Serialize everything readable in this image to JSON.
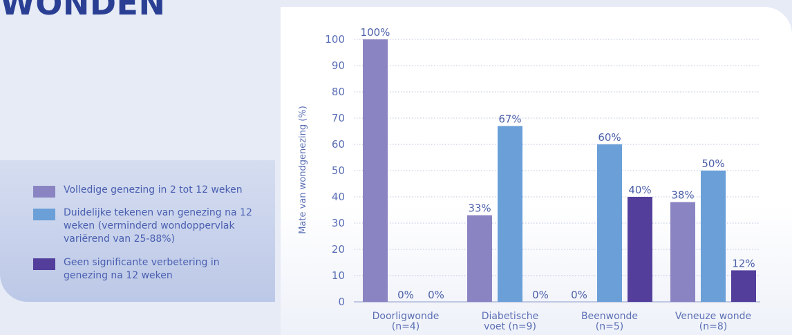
{
  "heading": "WONDEN",
  "colors": {
    "series_1": "#8b84c2",
    "series_2": "#6a9fd8",
    "series_3": "#533f9b",
    "text": "#5b6fb5",
    "heading": "#2a3f94"
  },
  "legend": {
    "items": [
      {
        "label": "Volledige genezing in 2 tot 12 weken",
        "color": "#8b84c2"
      },
      {
        "label": "Duidelijke tekenen van genezing na 12 weken (verminderd wondoppervlak variërend van 25-88%)",
        "color": "#6a9fd8"
      },
      {
        "label": "Geen significante verbetering in genezing na 12 weken",
        "color": "#533f9b"
      }
    ]
  },
  "chart_data": {
    "type": "bar",
    "title": "",
    "xlabel": "",
    "ylabel": "Mate van wondgenezing (%)",
    "ylim": [
      0,
      100
    ],
    "yticks": [
      0,
      10,
      20,
      30,
      40,
      50,
      60,
      70,
      80,
      90,
      100
    ],
    "grid": true,
    "legend_position": "left",
    "categories": [
      [
        "Doorligwonde",
        "(n=4)"
      ],
      [
        "Diabetische",
        "voet (n=9)"
      ],
      [
        "Beenwonde",
        "(n=5)"
      ],
      [
        "Veneuze wonde",
        "(n=8)"
      ]
    ],
    "series": [
      {
        "name": "Volledige genezing in 2 tot 12 weken",
        "values": [
          100,
          33,
          0,
          38
        ],
        "labels": [
          "100%",
          "33%",
          "0%",
          "38%"
        ]
      },
      {
        "name": "Duidelijke tekenen van genezing na 12 weken (verminderd wondoppervlak variërend van 25-88%)",
        "values": [
          0,
          67,
          60,
          50
        ],
        "labels": [
          "0%",
          "67%",
          "60%",
          "50%"
        ]
      },
      {
        "name": "Geen significante verbetering in genezing na 12 weken",
        "values": [
          0,
          0,
          40,
          12
        ],
        "labels": [
          "0%",
          "0%",
          "40%",
          "12%"
        ]
      }
    ]
  }
}
